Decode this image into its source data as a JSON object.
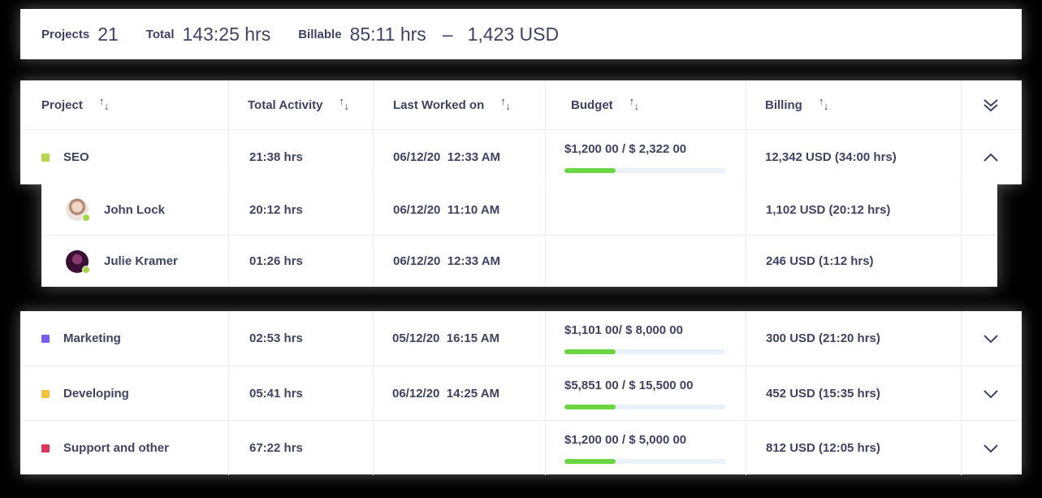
{
  "summary": {
    "projects_label": "Projects",
    "projects_value": "21",
    "total_label": "Total",
    "total_value": "143:25 hrs",
    "billable_label": "Billable",
    "billable_value": "85:11 hrs",
    "dash": "–",
    "billable_usd": "1,423 USD"
  },
  "columns": {
    "project": "Project",
    "total_activity": "Total Activity",
    "last_worked": "Last Worked on",
    "budget": "Budget",
    "billing": "Billing"
  },
  "icons": {
    "sort": "sort-arrows-icon",
    "collapse_all": "double-chevron-down-icon",
    "expand": "chevron-down-icon",
    "collapse": "chevron-up-icon"
  },
  "colors": {
    "progress": "#6ad540",
    "progress_track": "#e9f1fb"
  },
  "projects": [
    {
      "name": "SEO",
      "color": "#b9d650",
      "activity": "21:38 hrs",
      "date": "06/12/20",
      "time": "12:33 AM",
      "budget": "$1,200 00 / $ 2,322 00",
      "progress": 0.32,
      "billing": "12,342 USD (34:00 hrs)",
      "expanded": true,
      "members": [
        {
          "name": "John Lock",
          "activity": "20:12 hrs",
          "date": "06/12/20",
          "time": "11:10 AM",
          "billing": "1,102 USD (20:12 hrs)",
          "avatar_color": "#d9c9bf"
        },
        {
          "name": "Julie Kramer",
          "activity": "01:26 hrs",
          "date": "06/12/20",
          "time": "12:33 AM",
          "billing": "246 USD (1:12 hrs)",
          "avatar_color": "#5a1f4a"
        }
      ]
    },
    {
      "name": "Marketing",
      "color": "#7b5cf0",
      "activity": "02:53 hrs",
      "date": "05/12/20",
      "time": "16:15 AM",
      "budget": "$1,101 00/ $ 8,000 00",
      "progress": 0.32,
      "billing": "300 USD (21:20 hrs)",
      "expanded": false
    },
    {
      "name": "Developing",
      "color": "#f4c23f",
      "activity": "05:41 hrs",
      "date": "06/12/20",
      "time": "14:25 AM",
      "budget": "$5,851 00 / $ 15,500 00",
      "progress": 0.32,
      "billing": "452 USD (15:35 hrs)",
      "expanded": false
    },
    {
      "name": "Support and other",
      "color": "#d9365a",
      "activity": "67:22 hrs",
      "date": "",
      "time": "",
      "budget": "$1,200 00 / $ 5,000 00",
      "progress": 0.32,
      "billing": "812 USD (12:05 hrs)",
      "expanded": false
    }
  ]
}
